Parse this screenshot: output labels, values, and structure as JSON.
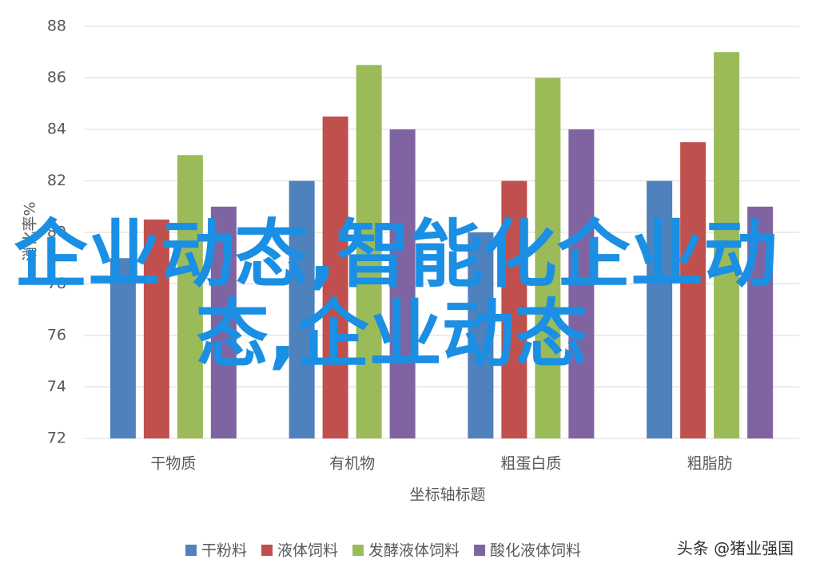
{
  "chart_data": {
    "type": "bar",
    "y_label": "消化率%",
    "x_label": "坐标轴标题",
    "categories": [
      "干物质",
      "有机物",
      "粗蛋白质",
      "粗脂肪"
    ],
    "series": [
      {
        "name": "干粉料",
        "color": "#4f81bd",
        "values": [
          79,
          82,
          80,
          82
        ]
      },
      {
        "name": "液体饲料",
        "color": "#c0504d",
        "values": [
          80.5,
          84.5,
          82,
          83.5
        ]
      },
      {
        "name": "发酵液体饲料",
        "color": "#9bbb59",
        "values": [
          83,
          86.5,
          86,
          87
        ]
      },
      {
        "name": "酸化液体饲料",
        "color": "#8064a2",
        "values": [
          81,
          84,
          84,
          81
        ]
      }
    ],
    "ylim": [
      72,
      88
    ],
    "yticks": [
      72,
      74,
      76,
      78,
      80,
      82,
      84,
      86,
      88
    ],
    "grid": true,
    "legend": "bottom",
    "overlay_text": [
      "企业动态,智能化企业动",
      "态,企业动态"
    ],
    "watermark": "头条 @猪业强国"
  }
}
